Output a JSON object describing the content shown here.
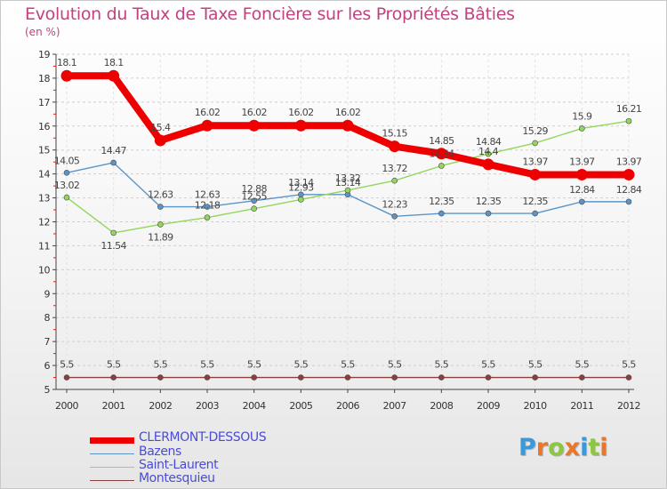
{
  "header": {
    "title": "Evolution du Taux de Taxe Foncière sur les Propriétés Bâties",
    "subtitle": "(en %)"
  },
  "logo": {
    "letters": [
      "P",
      "r",
      "o",
      "x",
      "i",
      "t",
      "i"
    ],
    "colors": [
      "#3a9ad9",
      "#e9772b",
      "#8dc63f",
      "#e9772b",
      "#3a9ad9",
      "#8dc63f",
      "#e9772b"
    ]
  },
  "chart_data": {
    "type": "line",
    "x": [
      "2000",
      "2001",
      "2002",
      "2003",
      "2004",
      "2005",
      "2006",
      "2007",
      "2008",
      "2009",
      "2010",
      "2011",
      "2012"
    ],
    "ylim": [
      5,
      19
    ],
    "yticks": [
      "5",
      "6",
      "7",
      "8",
      "9",
      "10",
      "11",
      "12",
      "13",
      "14",
      "15",
      "16",
      "17",
      "18",
      "19"
    ],
    "grid": "horizontal dashed",
    "legend_position": "bottom-left",
    "series": [
      {
        "name": "CLERMONT-DESSOUS",
        "color": "#ee0000",
        "values": [
          18.1,
          18.1,
          15.4,
          16.02,
          16.02,
          16.02,
          16.02,
          15.15,
          14.85,
          14.4,
          13.97,
          13.97,
          13.97
        ],
        "labels": [
          "18.1",
          "18.1",
          "15.4",
          "16.02",
          "16.02",
          "16.02",
          "16.02",
          "15.15",
          "14.85",
          "14.4",
          "13.97",
          "13.97",
          "13.97"
        ]
      },
      {
        "name": "Bazens",
        "color": "#5b95c7",
        "values": [
          14.05,
          14.47,
          12.63,
          12.63,
          12.88,
          13.14,
          13.14,
          12.23,
          12.35,
          12.35,
          12.35,
          12.84,
          12.84
        ],
        "labels": [
          "14.05",
          "14.47",
          "12.63",
          "12.63",
          "12.88",
          "13.14",
          "13.14",
          "12.23",
          "12.35",
          "12.35",
          "12.35",
          "12.84",
          "12.84"
        ]
      },
      {
        "name": "Saint-Laurent",
        "color": "#94d65a",
        "values": [
          13.02,
          11.54,
          11.89,
          12.18,
          12.55,
          12.93,
          13.32,
          13.72,
          14.34,
          14.84,
          15.29,
          15.9,
          16.21
        ],
        "labels": [
          "13.02",
          "11.54",
          "11.89",
          "12.18",
          "12.55",
          "12.93",
          "13.32",
          "13.72",
          "14.34",
          "14.84",
          "15.29",
          "15.9",
          "16.21"
        ]
      },
      {
        "name": "Montesquieu",
        "color": "#8a4040",
        "values": [
          5.5,
          5.5,
          5.5,
          5.5,
          5.5,
          5.5,
          5.5,
          5.5,
          5.5,
          5.5,
          5.5,
          5.5,
          5.5
        ],
        "labels": [
          "5.5",
          "5.5",
          "5.5",
          "5.5",
          "5.5",
          "5.5",
          "5.5",
          "5.5",
          "5.5",
          "5.5",
          "5.5",
          "5.5",
          "5.5"
        ]
      }
    ]
  }
}
